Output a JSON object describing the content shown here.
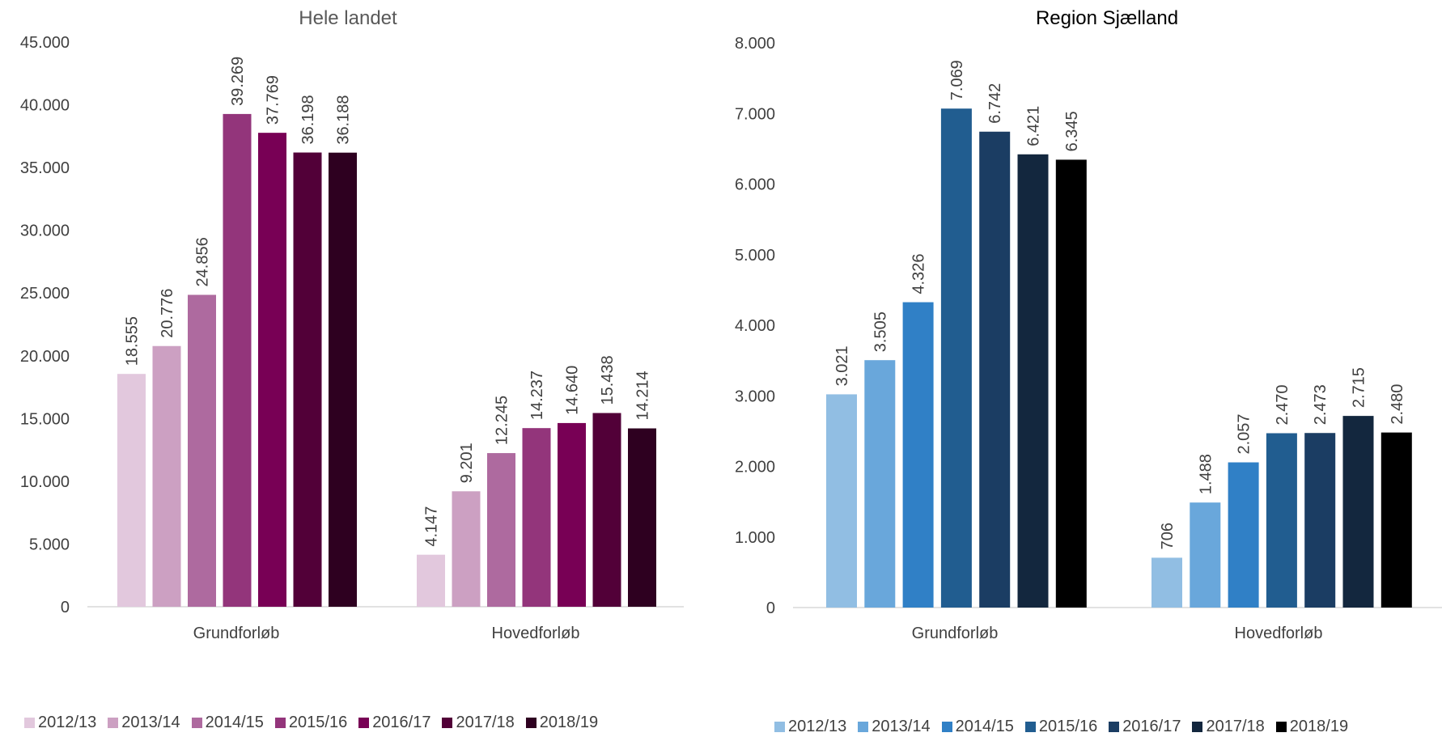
{
  "chart_data": [
    {
      "type": "bar",
      "title": "Hele landet",
      "categories": [
        "Grundforløb",
        "Hovedforløb"
      ],
      "ylim": [
        0,
        45000
      ],
      "yticks": [
        "0",
        "5.000",
        "10.000",
        "15.000",
        "20.000",
        "25.000",
        "30.000",
        "35.000",
        "40.000",
        "45.000"
      ],
      "ytick_values": [
        0,
        5000,
        10000,
        15000,
        20000,
        25000,
        30000,
        35000,
        40000,
        45000
      ],
      "grid": false,
      "legend_position": "bottom",
      "series": [
        {
          "name": "2012/13",
          "color": "#E2C8DD",
          "values": [
            18555,
            4147
          ],
          "labels": [
            "18.555",
            "4.147"
          ]
        },
        {
          "name": "2013/14",
          "color": "#CCA0C2",
          "values": [
            20776,
            9201
          ],
          "labels": [
            "20.776",
            "9.201"
          ]
        },
        {
          "name": "2014/15",
          "color": "#AE6A9F",
          "values": [
            24856,
            12245
          ],
          "labels": [
            "24.856",
            "12.245"
          ]
        },
        {
          "name": "2015/16",
          "color": "#93357B",
          "values": [
            39269,
            14237
          ],
          "labels": [
            "39.269",
            "14.237"
          ]
        },
        {
          "name": "2016/17",
          "color": "#780055",
          "values": [
            37769,
            14640
          ],
          "labels": [
            "37.769",
            "14.640"
          ]
        },
        {
          "name": "2017/18",
          "color": "#520038",
          "values": [
            36198,
            15438
          ],
          "labels": [
            "36.198",
            "15.438"
          ]
        },
        {
          "name": "2018/19",
          "color": "#2E0020",
          "values": [
            36188,
            14214
          ],
          "labels": [
            "36.188",
            "14.214"
          ]
        }
      ]
    },
    {
      "type": "bar",
      "title": "Region Sjælland",
      "categories": [
        "Grundforløb",
        "Hovedforløb"
      ],
      "ylim": [
        0,
        8000
      ],
      "yticks": [
        "0",
        "1.000",
        "2.000",
        "3.000",
        "4.000",
        "5.000",
        "6.000",
        "7.000",
        "8.000"
      ],
      "ytick_values": [
        0,
        1000,
        2000,
        3000,
        4000,
        5000,
        6000,
        7000,
        8000
      ],
      "grid": false,
      "legend_position": "bottom",
      "series": [
        {
          "name": "2012/13",
          "color": "#91BEE3",
          "values": [
            3021,
            706
          ],
          "labels": [
            "3.021",
            "706"
          ]
        },
        {
          "name": "2013/14",
          "color": "#69A7DB",
          "values": [
            3505,
            1488
          ],
          "labels": [
            "3.505",
            "1.488"
          ]
        },
        {
          "name": "2014/15",
          "color": "#3080C6",
          "values": [
            4326,
            2057
          ],
          "labels": [
            "4.326",
            "2.057"
          ]
        },
        {
          "name": "2015/16",
          "color": "#215D90",
          "values": [
            7069,
            2470
          ],
          "labels": [
            "7.069",
            "2.470"
          ]
        },
        {
          "name": "2016/17",
          "color": "#1B3D63",
          "values": [
            6742,
            2473
          ],
          "labels": [
            "6.742",
            "2.473"
          ]
        },
        {
          "name": "2017/18",
          "color": "#13273E",
          "values": [
            6421,
            2715
          ],
          "labels": [
            "6.421",
            "2.715"
          ]
        },
        {
          "name": "2018/19",
          "color": "#000000",
          "values": [
            6345,
            2480
          ],
          "labels": [
            "6.345",
            "2.480"
          ]
        }
      ]
    }
  ]
}
